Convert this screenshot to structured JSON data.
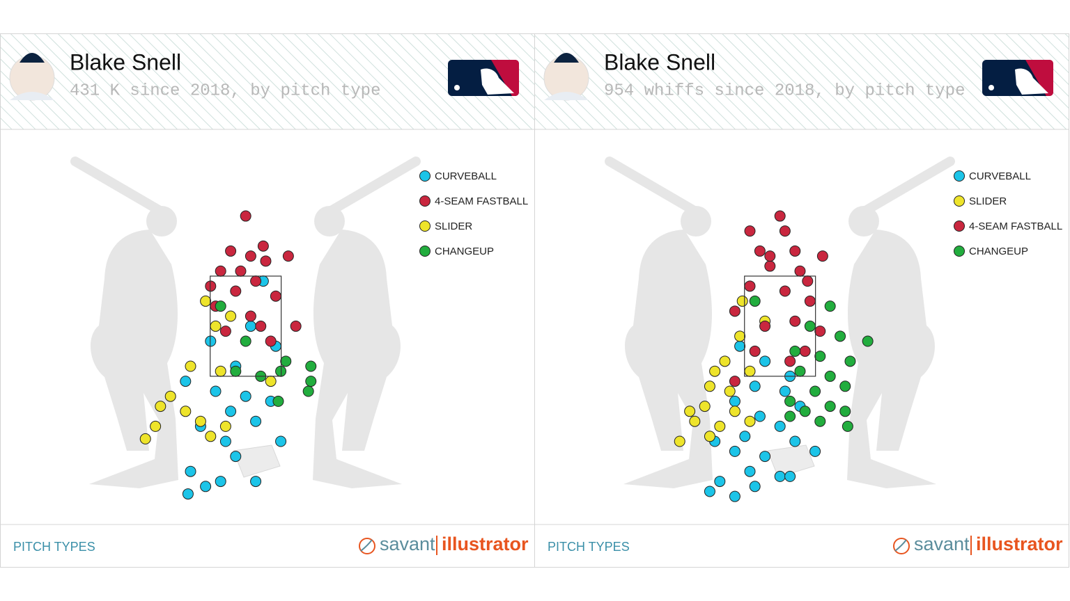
{
  "chart_data": [
    {
      "type": "scatter",
      "title": "Blake Snell",
      "subtitle": "431 K since 2018, by pitch type",
      "footer": "PITCH TYPES",
      "brand": [
        "savant",
        "illustrator"
      ],
      "xlim": [
        -4.9,
        5.77
      ],
      "ylim": [
        -1.46,
        6.43
      ],
      "series": [
        {
          "name": "CURVEBALL",
          "color": "#1cc4e8",
          "x": [
            0.35,
            -0.7,
            0.1,
            0.6,
            -0.2,
            -1.2,
            -0.6,
            0.0,
            0.5,
            -0.3,
            0.2,
            -0.9,
            -0.4,
            0.7,
            -0.2,
            -1.1,
            -0.5,
            0.2,
            -1.15,
            -0.8
          ],
          "values": [
            3.4,
            2.2,
            2.5,
            2.1,
            1.7,
            1.4,
            1.2,
            1.1,
            1.0,
            0.8,
            0.6,
            0.5,
            0.2,
            0.2,
            -0.1,
            -0.4,
            -0.6,
            -0.6,
            -0.85,
            -0.7
          ]
        },
        {
          "name": "4-SEAM FASTBALL",
          "color": "#c9273f",
          "x": [
            0.0,
            0.85,
            -0.3,
            0.1,
            0.4,
            -0.5,
            0.2,
            -0.2,
            0.6,
            -0.6,
            0.1,
            0.3,
            -0.4,
            0.5,
            1.0,
            -0.1,
            0.35,
            -0.7
          ],
          "values": [
            4.7,
            3.9,
            4.0,
            3.9,
            3.8,
            3.6,
            3.4,
            3.2,
            3.1,
            2.9,
            2.7,
            2.5,
            2.4,
            2.2,
            2.5,
            3.6,
            4.1,
            3.3
          ]
        },
        {
          "name": "SLIDER",
          "color": "#eee42b",
          "x": [
            -0.8,
            -0.6,
            -1.1,
            -0.5,
            -1.5,
            -1.2,
            -0.9,
            -0.4,
            -1.7,
            -1.8,
            -0.7,
            -2.0,
            0.5,
            -0.3
          ],
          "values": [
            3.0,
            2.5,
            1.7,
            1.6,
            1.1,
            0.8,
            0.6,
            0.5,
            0.9,
            0.5,
            0.3,
            0.25,
            1.4,
            2.7
          ]
        },
        {
          "name": "CHANGEUP",
          "color": "#22ad3e",
          "x": [
            -0.5,
            0.0,
            0.8,
            1.3,
            1.25,
            0.65,
            1.3,
            0.3,
            0.7,
            -0.2
          ],
          "values": [
            2.9,
            2.2,
            1.8,
            1.7,
            1.2,
            1.0,
            1.4,
            1.5,
            1.6,
            1.6
          ]
        }
      ]
    },
    {
      "type": "scatter",
      "title": "Blake Snell",
      "subtitle": "954 whiffs since 2018, by pitch type",
      "footer": "PITCH TYPES",
      "brand": [
        "savant",
        "illustrator"
      ],
      "xlim": [
        -4.9,
        5.77
      ],
      "ylim": [
        -1.46,
        6.43
      ],
      "series": [
        {
          "name": "CURVEBALL",
          "color": "#1cc4e8",
          "x": [
            -0.8,
            -0.3,
            0.2,
            -0.5,
            0.1,
            -0.9,
            0.4,
            -0.4,
            0.0,
            -0.7,
            -1.3,
            0.3,
            -0.9,
            -0.3,
            0.7,
            -0.6,
            0.0,
            -1.2,
            -0.9,
            -1.4,
            0.2,
            -0.5
          ],
          "values": [
            2.1,
            1.8,
            1.5,
            1.3,
            1.2,
            1.0,
            0.9,
            0.7,
            0.5,
            0.3,
            0.2,
            0.2,
            0.0,
            -0.1,
            0.0,
            -0.4,
            -0.5,
            -0.6,
            -0.9,
            -0.8,
            -0.5,
            -0.7
          ]
        },
        {
          "name": "SLIDER",
          "color": "#eee42b",
          "x": [
            -0.75,
            -0.3,
            -0.8,
            -1.1,
            -0.6,
            -1.4,
            -1.0,
            -1.5,
            -0.9,
            -1.7,
            -1.2,
            -1.4,
            -0.6,
            -1.8,
            -2.0,
            -1.3
          ],
          "values": [
            3.0,
            2.6,
            2.3,
            1.8,
            1.6,
            1.3,
            1.2,
            0.9,
            0.8,
            0.6,
            0.5,
            0.3,
            0.6,
            0.8,
            0.2,
            1.6
          ]
        },
        {
          "name": "4-SEAM FASTBALL",
          "color": "#c9273f",
          "x": [
            0.0,
            -0.6,
            0.1,
            0.85,
            -0.4,
            0.3,
            -0.2,
            0.4,
            -0.6,
            0.1,
            0.6,
            -0.9,
            0.3,
            -0.3,
            0.8,
            -0.5,
            0.5,
            0.2,
            -0.9,
            -0.2,
            0.55
          ],
          "values": [
            4.7,
            4.4,
            4.4,
            3.9,
            4.0,
            4.0,
            3.7,
            3.6,
            3.3,
            3.2,
            3.0,
            2.8,
            2.6,
            2.5,
            2.4,
            2.0,
            2.0,
            1.8,
            1.4,
            3.9,
            3.4
          ]
        },
        {
          "name": "CHANGEUP",
          "color": "#22ad3e",
          "x": [
            -0.5,
            1.0,
            0.6,
            1.2,
            1.75,
            0.3,
            0.8,
            1.4,
            0.4,
            1.0,
            1.3,
            0.7,
            0.2,
            1.0,
            0.5,
            1.3,
            0.8,
            1.35,
            0.2
          ],
          "values": [
            3.0,
            2.9,
            2.5,
            2.3,
            2.2,
            2.0,
            1.9,
            1.8,
            1.6,
            1.5,
            1.3,
            1.2,
            1.0,
            0.9,
            0.8,
            0.8,
            0.6,
            0.5,
            0.7
          ]
        }
      ]
    }
  ]
}
